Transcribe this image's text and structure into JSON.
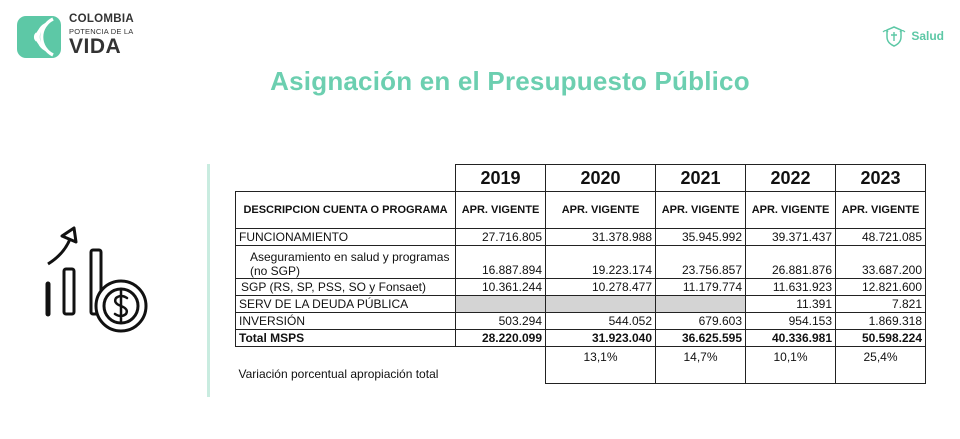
{
  "logo": {
    "line1": "COLOMBIA",
    "line2": "POTENCIA DE LA",
    "line3": "VIDA"
  },
  "brand": {
    "label": "Salud"
  },
  "title": "Asignación en el Presupuesto Público",
  "table": {
    "years": [
      "2019",
      "2020",
      "2021",
      "2022",
      "2023"
    ],
    "header_desc": "DESCRIPCION CUENTA O PROGRAMA",
    "header_sub": [
      "APR. VIGENTE",
      "APR. VIGENTE",
      "APR. VIGENTE",
      "APR. VIGENTE",
      "APR. VIGENTE"
    ],
    "rows": [
      {
        "label": "FUNCIONAMIENTO",
        "values": [
          "27.716.805",
          "31.378.988",
          "35.945.992",
          "39.371.437",
          "48.721.085"
        ]
      },
      {
        "label": "Aseguramiento en salud y programas (no SGP)",
        "values": [
          "16.887.894",
          "19.223.174",
          "23.756.857",
          "26.881.876",
          "33.687.200"
        ]
      },
      {
        "label": "SGP  (RS, SP, PSS, SO y Fonsaet)",
        "values": [
          "10.361.244",
          "10.278.477",
          "11.179.774",
          "11.631.923",
          "12.821.600"
        ]
      },
      {
        "label": "SERV DE LA DEUDA PÚBLICA",
        "values": [
          "",
          "",
          "",
          "11.391",
          "7.821"
        ]
      },
      {
        "label": "INVERSIÓN",
        "values": [
          "503.294",
          "544.052",
          "679.603",
          "954.153",
          "1.869.318"
        ]
      },
      {
        "label": "Total MSPS",
        "values": [
          "28.220.099",
          "31.923.040",
          "36.625.595",
          "40.336.981",
          "50.598.224"
        ]
      }
    ],
    "variation_label": "Variación porcentual apropiación total",
    "variation": [
      "13,1%",
      "14,7%",
      "10,1%",
      "25,4%"
    ]
  },
  "colors": {
    "accent": "#6ccfb0",
    "logo_green": "#5dc8a6",
    "grey_cell": "#d4d4d4"
  },
  "icons": {
    "left_illustration": "finance-growth-icon",
    "salud_emblem": "shield-emblem-icon"
  }
}
